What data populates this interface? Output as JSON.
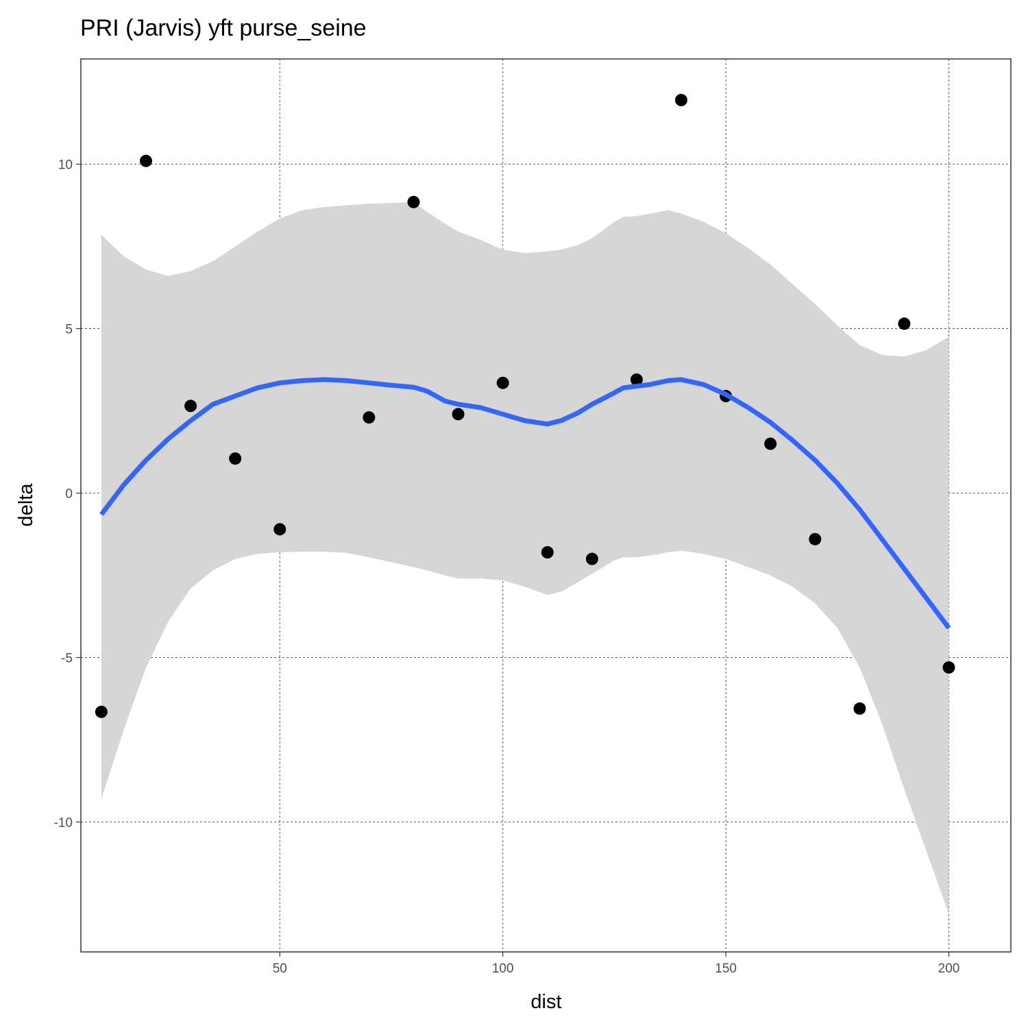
{
  "chart_data": {
    "type": "scatter",
    "title": "PRI (Jarvis) yft purse_seine",
    "xlabel": "dist",
    "ylabel": "delta",
    "xlim": [
      5.4,
      213.9
    ],
    "ylim": [
      -13.95,
      13.2
    ],
    "x_ticks": [
      50,
      100,
      150,
      200
    ],
    "y_ticks": [
      -10,
      -5,
      0,
      5,
      10
    ],
    "x_tick_labels": [
      "50",
      "100",
      "150",
      "200"
    ],
    "y_tick_labels": [
      "-10",
      "-5",
      "0",
      "5",
      "10"
    ],
    "grid": true,
    "points": [
      {
        "x": 10,
        "y": -6.65
      },
      {
        "x": 20,
        "y": 10.1
      },
      {
        "x": 30,
        "y": 2.65
      },
      {
        "x": 40,
        "y": 1.05
      },
      {
        "x": 50,
        "y": -1.1
      },
      {
        "x": 70,
        "y": 2.3
      },
      {
        "x": 80,
        "y": 8.85
      },
      {
        "x": 90,
        "y": 2.4
      },
      {
        "x": 100,
        "y": 3.35
      },
      {
        "x": 110,
        "y": -1.8
      },
      {
        "x": 120,
        "y": -2.0
      },
      {
        "x": 130,
        "y": 3.45
      },
      {
        "x": 140,
        "y": 11.95
      },
      {
        "x": 150,
        "y": 2.95
      },
      {
        "x": 160,
        "y": 1.5
      },
      {
        "x": 170,
        "y": -1.4
      },
      {
        "x": 180,
        "y": -6.55
      },
      {
        "x": 190,
        "y": 5.15
      },
      {
        "x": 200,
        "y": -5.3
      }
    ],
    "smooth": {
      "x": [
        10,
        15,
        20,
        25,
        30,
        35,
        40,
        45,
        50,
        55,
        60,
        65,
        70,
        75,
        80,
        83,
        87,
        90,
        95,
        100,
        105,
        110,
        113,
        117,
        120,
        125,
        127,
        130,
        133,
        137,
        140,
        145,
        150,
        155,
        160,
        165,
        170,
        175,
        180,
        185,
        190,
        195,
        200
      ],
      "y": [
        -0.65,
        0.25,
        1.0,
        1.65,
        2.2,
        2.7,
        2.95,
        3.2,
        3.35,
        3.42,
        3.45,
        3.42,
        3.35,
        3.28,
        3.22,
        3.1,
        2.8,
        2.7,
        2.6,
        2.4,
        2.2,
        2.1,
        2.2,
        2.45,
        2.7,
        3.05,
        3.2,
        3.25,
        3.3,
        3.42,
        3.45,
        3.3,
        3.0,
        2.6,
        2.15,
        1.6,
        1.0,
        0.3,
        -0.5,
        -1.4,
        -2.3,
        -3.2,
        -4.1
      ],
      "upper": [
        7.85,
        7.2,
        6.8,
        6.6,
        6.75,
        7.05,
        7.5,
        7.95,
        8.35,
        8.6,
        8.7,
        8.75,
        8.8,
        8.82,
        8.85,
        8.55,
        8.2,
        7.95,
        7.7,
        7.4,
        7.3,
        7.35,
        7.4,
        7.55,
        7.75,
        8.25,
        8.4,
        8.42,
        8.5,
        8.6,
        8.5,
        8.25,
        7.9,
        7.45,
        6.95,
        6.35,
        5.75,
        5.1,
        4.5,
        4.2,
        4.15,
        4.35,
        4.75
      ],
      "lower": [
        -9.3,
        -7.2,
        -5.3,
        -3.9,
        -2.9,
        -2.35,
        -2.0,
        -1.85,
        -1.8,
        -1.78,
        -1.78,
        -1.82,
        -1.95,
        -2.1,
        -2.25,
        -2.35,
        -2.5,
        -2.6,
        -2.6,
        -2.65,
        -2.85,
        -3.1,
        -3.0,
        -2.7,
        -2.45,
        -2.05,
        -1.95,
        -1.95,
        -1.9,
        -1.8,
        -1.75,
        -1.85,
        -2.0,
        -2.25,
        -2.5,
        -2.85,
        -3.35,
        -4.1,
        -5.3,
        -7.0,
        -9.0,
        -10.9,
        -12.8
      ]
    },
    "colors": {
      "point": "#000000",
      "line": "#3366ff",
      "band": "#d6d6d6",
      "grid": "#555555",
      "panel_border": "#333333"
    }
  }
}
